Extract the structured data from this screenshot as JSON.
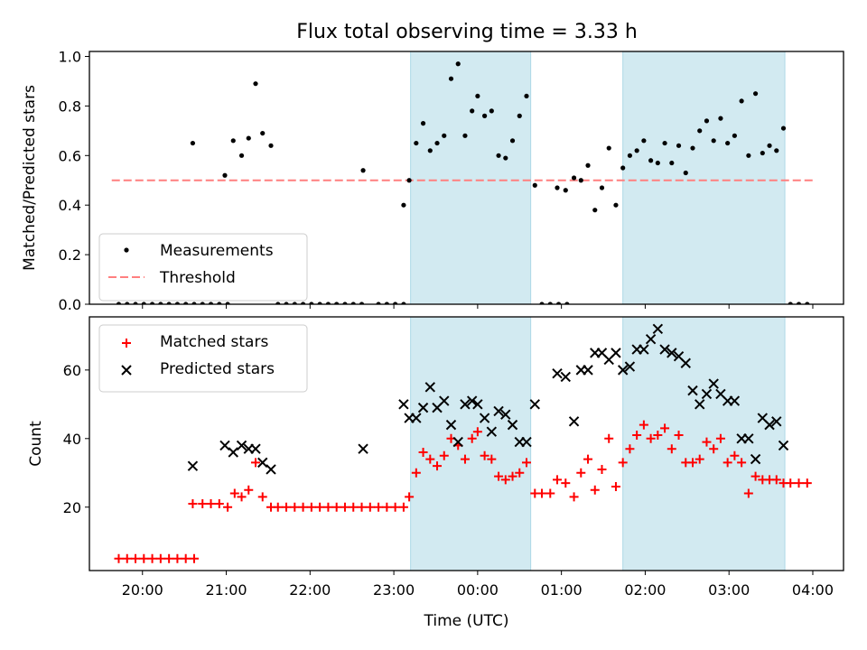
{
  "chart_data": [
    {
      "type": "scatter",
      "title": "Flux total observing time = 3.33 h",
      "ylabel": "Matched/Predicted stars",
      "xlabel": "",
      "xlim": [
        "19:22",
        "04:22"
      ],
      "ylim": [
        0,
        1.02
      ],
      "yticks": [
        "0.0",
        "0.2",
        "0.4",
        "0.6",
        "0.8",
        "1.0"
      ],
      "grid": false,
      "legend_position": "lower-left",
      "shaded_intervals": [
        [
          "23:12",
          "00:38"
        ],
        [
          "01:44",
          "03:40"
        ]
      ],
      "shade_color": "#add8e6",
      "threshold": {
        "name": "Threshold",
        "value": 0.5,
        "x_range": [
          "19:38",
          "04:00"
        ],
        "color": "#ff7f7f"
      },
      "series": [
        {
          "name": "Measurements",
          "color": "#000000",
          "points": [
            [
              "19:43",
              0
            ],
            [
              "19:49",
              0
            ],
            [
              "19:55",
              0
            ],
            [
              "20:01",
              0
            ],
            [
              "20:07",
              0
            ],
            [
              "20:13",
              0
            ],
            [
              "20:19",
              0
            ],
            [
              "20:25",
              0
            ],
            [
              "20:31",
              0
            ],
            [
              "20:37",
              0
            ],
            [
              "20:36",
              0.65
            ],
            [
              "20:43",
              0
            ],
            [
              "20:49",
              0
            ],
            [
              "20:55",
              0
            ],
            [
              "21:01",
              0
            ],
            [
              "20:59",
              0.52
            ],
            [
              "21:05",
              0.66
            ],
            [
              "21:11",
              0.6
            ],
            [
              "21:16",
              0.67
            ],
            [
              "21:21",
              0.89
            ],
            [
              "21:26",
              0.69
            ],
            [
              "21:32",
              0.64
            ],
            [
              "21:37",
              0
            ],
            [
              "21:43",
              0
            ],
            [
              "21:49",
              0
            ],
            [
              "21:55",
              0
            ],
            [
              "22:01",
              0
            ],
            [
              "22:07",
              0
            ],
            [
              "22:13",
              0
            ],
            [
              "22:19",
              0
            ],
            [
              "22:25",
              0
            ],
            [
              "22:31",
              0
            ],
            [
              "22:37",
              0
            ],
            [
              "22:38",
              0.54
            ],
            [
              "22:49",
              0
            ],
            [
              "22:55",
              0
            ],
            [
              "23:01",
              0
            ],
            [
              "23:07",
              0
            ],
            [
              "23:07",
              0.4
            ],
            [
              "23:11",
              0.5
            ],
            [
              "23:16",
              0.65
            ],
            [
              "23:21",
              0.73
            ],
            [
              "23:26",
              0.62
            ],
            [
              "23:31",
              0.65
            ],
            [
              "23:36",
              0.68
            ],
            [
              "23:41",
              0.91
            ],
            [
              "23:46",
              0.97
            ],
            [
              "23:51",
              0.68
            ],
            [
              "23:56",
              0.78
            ],
            [
              "00:00",
              0.84
            ],
            [
              "00:05",
              0.76
            ],
            [
              "00:10",
              0.78
            ],
            [
              "00:15",
              0.6
            ],
            [
              "00:20",
              0.59
            ],
            [
              "00:25",
              0.66
            ],
            [
              "00:30",
              0.76
            ],
            [
              "00:35",
              0.84
            ],
            [
              "00:41",
              0.48
            ],
            [
              "00:46",
              0
            ],
            [
              "00:52",
              0
            ],
            [
              "00:58",
              0
            ],
            [
              "01:04",
              0
            ],
            [
              "00:57",
              0.47
            ],
            [
              "01:03",
              0.46
            ],
            [
              "01:09",
              0.51
            ],
            [
              "01:14",
              0.5
            ],
            [
              "01:19",
              0.56
            ],
            [
              "01:24",
              0.38
            ],
            [
              "01:29",
              0.47
            ],
            [
              "01:34",
              0.63
            ],
            [
              "01:39",
              0.4
            ],
            [
              "01:44",
              0.55
            ],
            [
              "01:49",
              0.6
            ],
            [
              "01:54",
              0.62
            ],
            [
              "01:59",
              0.66
            ],
            [
              "02:04",
              0.58
            ],
            [
              "02:09",
              0.57
            ],
            [
              "02:14",
              0.65
            ],
            [
              "02:19",
              0.57
            ],
            [
              "02:24",
              0.64
            ],
            [
              "02:29",
              0.53
            ],
            [
              "02:34",
              0.63
            ],
            [
              "02:39",
              0.7
            ],
            [
              "02:44",
              0.74
            ],
            [
              "02:49",
              0.66
            ],
            [
              "02:54",
              0.75
            ],
            [
              "02:59",
              0.65
            ],
            [
              "03:04",
              0.68
            ],
            [
              "03:09",
              0.82
            ],
            [
              "03:14",
              0.6
            ],
            [
              "03:19",
              0.85
            ],
            [
              "03:24",
              0.61
            ],
            [
              "03:29",
              0.64
            ],
            [
              "03:34",
              0.62
            ],
            [
              "03:39",
              0.71
            ],
            [
              "03:44",
              0
            ],
            [
              "03:50",
              0
            ],
            [
              "03:56",
              0
            ]
          ]
        }
      ]
    },
    {
      "type": "scatter",
      "title": "",
      "ylabel": "Count",
      "xlabel": "Time (UTC)",
      "xlim": [
        "19:22",
        "04:22"
      ],
      "ylim": [
        1.5,
        75.5
      ],
      "xticks": [
        "20:00",
        "21:00",
        "22:00",
        "23:00",
        "00:00",
        "01:00",
        "02:00",
        "03:00",
        "04:00"
      ],
      "yticks": [
        "20",
        "40",
        "60"
      ],
      "grid": false,
      "legend_position": "top-left",
      "shaded_intervals": [
        [
          "23:12",
          "00:38"
        ],
        [
          "01:44",
          "03:40"
        ]
      ],
      "shade_color": "#add8e6",
      "series": [
        {
          "name": "Matched stars",
          "color": "#ff0000",
          "marker": "+",
          "points": [
            [
              "19:43",
              5
            ],
            [
              "19:49",
              5
            ],
            [
              "19:55",
              5
            ],
            [
              "20:01",
              5
            ],
            [
              "20:07",
              5
            ],
            [
              "20:13",
              5
            ],
            [
              "20:19",
              5
            ],
            [
              "20:25",
              5
            ],
            [
              "20:31",
              5
            ],
            [
              "20:37",
              5
            ],
            [
              "20:36",
              21
            ],
            [
              "20:43",
              21
            ],
            [
              "20:49",
              21
            ],
            [
              "20:55",
              21
            ],
            [
              "21:01",
              20
            ],
            [
              "21:06",
              24
            ],
            [
              "21:11",
              23
            ],
            [
              "21:16",
              25
            ],
            [
              "21:21",
              33
            ],
            [
              "21:26",
              23
            ],
            [
              "21:32",
              20
            ],
            [
              "21:37",
              20
            ],
            [
              "21:43",
              20
            ],
            [
              "21:49",
              20
            ],
            [
              "21:55",
              20
            ],
            [
              "22:01",
              20
            ],
            [
              "22:07",
              20
            ],
            [
              "22:13",
              20
            ],
            [
              "22:19",
              20
            ],
            [
              "22:25",
              20
            ],
            [
              "22:31",
              20
            ],
            [
              "22:37",
              20
            ],
            [
              "22:43",
              20
            ],
            [
              "22:49",
              20
            ],
            [
              "22:55",
              20
            ],
            [
              "23:01",
              20
            ],
            [
              "23:07",
              20
            ],
            [
              "23:11",
              23
            ],
            [
              "23:16",
              30
            ],
            [
              "23:21",
              36
            ],
            [
              "23:26",
              34
            ],
            [
              "23:31",
              32
            ],
            [
              "23:36",
              35
            ],
            [
              "23:41",
              40
            ],
            [
              "23:46",
              38
            ],
            [
              "23:51",
              34
            ],
            [
              "23:56",
              40
            ],
            [
              "00:00",
              42
            ],
            [
              "00:05",
              35
            ],
            [
              "00:10",
              34
            ],
            [
              "00:15",
              29
            ],
            [
              "00:20",
              28
            ],
            [
              "00:25",
              29
            ],
            [
              "00:30",
              30
            ],
            [
              "00:35",
              33
            ],
            [
              "00:41",
              24
            ],
            [
              "00:46",
              24
            ],
            [
              "00:52",
              24
            ],
            [
              "00:57",
              28
            ],
            [
              "01:03",
              27
            ],
            [
              "01:09",
              23
            ],
            [
              "01:14",
              30
            ],
            [
              "01:19",
              34
            ],
            [
              "01:24",
              25
            ],
            [
              "01:29",
              31
            ],
            [
              "01:34",
              40
            ],
            [
              "01:39",
              26
            ],
            [
              "01:44",
              33
            ],
            [
              "01:49",
              37
            ],
            [
              "01:54",
              41
            ],
            [
              "01:59",
              44
            ],
            [
              "02:04",
              40
            ],
            [
              "02:09",
              41
            ],
            [
              "02:14",
              43
            ],
            [
              "02:19",
              37
            ],
            [
              "02:24",
              41
            ],
            [
              "02:29",
              33
            ],
            [
              "02:34",
              33
            ],
            [
              "02:39",
              34
            ],
            [
              "02:44",
              39
            ],
            [
              "02:49",
              37
            ],
            [
              "02:54",
              40
            ],
            [
              "02:59",
              33
            ],
            [
              "03:04",
              35
            ],
            [
              "03:09",
              33
            ],
            [
              "03:14",
              24
            ],
            [
              "03:19",
              29
            ],
            [
              "03:24",
              28
            ],
            [
              "03:29",
              28
            ],
            [
              "03:34",
              28
            ],
            [
              "03:39",
              27
            ],
            [
              "03:44",
              27
            ],
            [
              "03:50",
              27
            ],
            [
              "03:56",
              27
            ]
          ]
        },
        {
          "name": "Predicted stars",
          "color": "#000000",
          "marker": "x",
          "points": [
            [
              "20:36",
              32
            ],
            [
              "20:59",
              38
            ],
            [
              "21:05",
              36
            ],
            [
              "21:11",
              38
            ],
            [
              "21:16",
              37
            ],
            [
              "21:21",
              37
            ],
            [
              "21:26",
              33
            ],
            [
              "21:32",
              31
            ],
            [
              "22:38",
              37
            ],
            [
              "23:07",
              50
            ],
            [
              "23:11",
              46
            ],
            [
              "23:16",
              46
            ],
            [
              "23:21",
              49
            ],
            [
              "23:26",
              55
            ],
            [
              "23:31",
              49
            ],
            [
              "23:36",
              51
            ],
            [
              "23:41",
              44
            ],
            [
              "23:46",
              39
            ],
            [
              "23:51",
              50
            ],
            [
              "23:56",
              51
            ],
            [
              "00:00",
              50
            ],
            [
              "00:05",
              46
            ],
            [
              "00:10",
              42
            ],
            [
              "00:15",
              48
            ],
            [
              "00:20",
              47
            ],
            [
              "00:25",
              44
            ],
            [
              "00:30",
              39
            ],
            [
              "00:35",
              39
            ],
            [
              "00:41",
              50
            ],
            [
              "00:57",
              59
            ],
            [
              "01:03",
              58
            ],
            [
              "01:09",
              45
            ],
            [
              "01:14",
              60
            ],
            [
              "01:19",
              60
            ],
            [
              "01:24",
              65
            ],
            [
              "01:29",
              65
            ],
            [
              "01:34",
              63
            ],
            [
              "01:39",
              65
            ],
            [
              "01:44",
              60
            ],
            [
              "01:49",
              61
            ],
            [
              "01:54",
              66
            ],
            [
              "01:59",
              66
            ],
            [
              "02:04",
              69
            ],
            [
              "02:09",
              72
            ],
            [
              "02:14",
              66
            ],
            [
              "02:19",
              65
            ],
            [
              "02:24",
              64
            ],
            [
              "02:29",
              62
            ],
            [
              "02:34",
              54
            ],
            [
              "02:39",
              50
            ],
            [
              "02:44",
              53
            ],
            [
              "02:49",
              56
            ],
            [
              "02:54",
              53
            ],
            [
              "02:59",
              51
            ],
            [
              "03:04",
              51
            ],
            [
              "03:09",
              40
            ],
            [
              "03:14",
              40
            ],
            [
              "03:19",
              34
            ],
            [
              "03:24",
              46
            ],
            [
              "03:29",
              44
            ],
            [
              "03:34",
              45
            ],
            [
              "03:39",
              38
            ]
          ]
        }
      ]
    }
  ]
}
